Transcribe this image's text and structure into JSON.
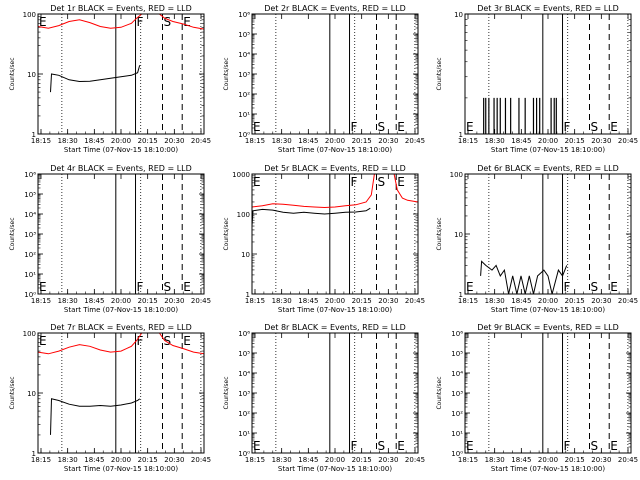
{
  "figure": {
    "background": "#ffffff",
    "axis_color": "#000000",
    "events_color": "#000000",
    "lld_color": "#ff0000"
  },
  "chart_data": [
    {
      "type": "line",
      "title": "Det 1r BLACK = Events, RED = LLD",
      "xlabel": "Start Time (07-Nov-15 18:10:00)",
      "ylabel": "Counts/sec",
      "xlim": [
        "18:10",
        "20:50"
      ],
      "xticks": [
        "18:15",
        "18:30",
        "18:45",
        "20:00",
        "20:15",
        "20:30",
        "20:45"
      ],
      "ylog": true,
      "ylim": [
        1,
        100
      ],
      "yticks": [
        "1",
        "10",
        "100"
      ],
      "markers": [
        {
          "label": "E",
          "time": "18:10",
          "style": "none"
        },
        {
          "label": "F",
          "time": "19:44",
          "style": "solid"
        },
        {
          "label": "S",
          "time": "20:10",
          "style": "dashed"
        },
        {
          "label": "E",
          "time": "20:29",
          "style": "dashed"
        }
      ],
      "dotted_lines": [
        "18:33",
        "19:49",
        "20:47"
      ],
      "extra_solid_lines": [
        "19:25"
      ],
      "series": [
        {
          "name": "LLD",
          "color": "#ff0000",
          "points": [
            [
              "18:10",
              62
            ],
            [
              "18:20",
              58
            ],
            [
              "18:30",
              64
            ],
            [
              "18:40",
              75
            ],
            [
              "18:50",
              80
            ],
            [
              "19:00",
              72
            ],
            [
              "19:10",
              62
            ],
            [
              "19:20",
              58
            ],
            [
              "19:30",
              60
            ],
            [
              "19:40",
              70
            ],
            [
              "19:45",
              85
            ],
            [
              "19:50",
              100
            ]
          ],
          "points2": [
            [
              "20:07",
              100
            ],
            [
              "20:12",
              85
            ],
            [
              "20:20",
              75
            ],
            [
              "20:30",
              68
            ],
            [
              "20:40",
              60
            ],
            [
              "20:50",
              56
            ]
          ]
        },
        {
          "name": "Events",
          "color": "#000000",
          "points": [
            [
              "18:22",
              5
            ],
            [
              "18:23",
              10
            ],
            [
              "18:30",
              9.5
            ],
            [
              "18:40",
              8
            ],
            [
              "18:50",
              7.5
            ],
            [
              "19:00",
              7.6
            ],
            [
              "19:10",
              8
            ],
            [
              "19:20",
              8.5
            ],
            [
              "19:30",
              9
            ],
            [
              "19:40",
              9.5
            ],
            [
              "19:46",
              10.5
            ],
            [
              "19:48",
              14
            ]
          ]
        }
      ]
    },
    {
      "type": "line",
      "title": "Det 2r BLACK = Events, RED = LLD",
      "xlabel": "Start Time (07-Nov-15 18:10:00)",
      "ylabel": "Counts/sec",
      "xlim": [
        "18:10",
        "20:50"
      ],
      "xticks": [
        "18:15",
        "18:30",
        "18:45",
        "20:00",
        "20:15",
        "20:30",
        "20:45"
      ],
      "ylog": true,
      "ylim": [
        1,
        1000000
      ],
      "yticks": [
        "10^0",
        "10^1",
        "10^2",
        "10^3",
        "10^4",
        "10^5",
        "10^6"
      ],
      "markers": [
        {
          "label": "E",
          "time": "18:10",
          "style": "none"
        },
        {
          "label": "F",
          "time": "19:44",
          "style": "solid"
        },
        {
          "label": "S",
          "time": "20:10",
          "style": "dashed"
        },
        {
          "label": "E",
          "time": "20:29",
          "style": "dashed"
        }
      ],
      "dotted_lines": [
        "18:33",
        "19:49",
        "20:47"
      ],
      "extra_solid_lines": [
        "19:25"
      ],
      "series": []
    },
    {
      "type": "line",
      "title": "Det 3r BLACK = Events, RED = LLD",
      "xlabel": "Start Time (07-Nov-15 18:10:00)",
      "ylabel": "Counts/sec",
      "xlim": [
        "18:10",
        "20:50"
      ],
      "xticks": [
        "18:15",
        "18:30",
        "18:45",
        "20:00",
        "20:15",
        "20:30",
        "20:45"
      ],
      "ylog": true,
      "ylim": [
        1,
        10
      ],
      "yticks": [
        "1",
        "10"
      ],
      "markers": [
        {
          "label": "E",
          "time": "18:10",
          "style": "none"
        },
        {
          "label": "F",
          "time": "19:44",
          "style": "solid"
        },
        {
          "label": "S",
          "time": "20:10",
          "style": "dashed"
        },
        {
          "label": "E",
          "time": "20:29",
          "style": "dashed"
        }
      ],
      "dotted_lines": [
        "18:33",
        "19:49",
        "20:47"
      ],
      "extra_solid_lines": [
        "19:25"
      ],
      "series": [
        {
          "name": "Events",
          "color": "#000000",
          "spikes": [
            "18:28",
            "18:30",
            "18:33",
            "18:38",
            "18:41",
            "18:44",
            "18:49",
            "18:54",
            "19:02",
            "19:08",
            "19:16",
            "19:19",
            "19:22",
            "19:33",
            "19:36",
            "19:38",
            "19:44"
          ],
          "spike_level": 2
        }
      ]
    },
    {
      "type": "line",
      "title": "Det 4r BLACK = Events, RED = LLD",
      "xlabel": "Start Time (07-Nov-15 18:10:00)",
      "ylabel": "Counts/sec",
      "xlim": [
        "18:10",
        "20:50"
      ],
      "xticks": [
        "18:15",
        "18:30",
        "18:45",
        "20:00",
        "20:15",
        "20:30",
        "20:45"
      ],
      "ylog": true,
      "ylim": [
        1,
        1000000
      ],
      "yticks": [
        "10^0",
        "10^1",
        "10^2",
        "10^3",
        "10^4",
        "10^5",
        "10^6"
      ],
      "markers": [
        {
          "label": "E",
          "time": "18:10",
          "style": "none"
        },
        {
          "label": "F",
          "time": "19:44",
          "style": "solid"
        },
        {
          "label": "S",
          "time": "20:10",
          "style": "dashed"
        },
        {
          "label": "E",
          "time": "20:29",
          "style": "dashed"
        }
      ],
      "dotted_lines": [
        "18:33",
        "19:49",
        "20:47"
      ],
      "extra_solid_lines": [
        "19:25"
      ],
      "series": []
    },
    {
      "type": "line",
      "title": "Det 5r BLACK = Events, RED = LLD",
      "xlabel": "Start Time (07-Nov-15 18:10:00)",
      "ylabel": "Counts/sec",
      "xlim": [
        "18:10",
        "20:50"
      ],
      "xticks": [
        "18:15",
        "18:30",
        "18:45",
        "20:00",
        "20:15",
        "20:30",
        "20:45"
      ],
      "ylog": true,
      "ylim": [
        1,
        1000
      ],
      "yticks": [
        "1",
        "10",
        "100",
        "1000"
      ],
      "markers": [
        {
          "label": "E",
          "time": "18:10",
          "style": "none"
        },
        {
          "label": "F",
          "time": "19:44",
          "style": "solid"
        },
        {
          "label": "S",
          "time": "20:10",
          "style": "dashed"
        },
        {
          "label": "E",
          "time": "20:29",
          "style": "dashed"
        }
      ],
      "dotted_lines": [
        "18:33",
        "19:49",
        "20:47"
      ],
      "extra_solid_lines": [
        "19:25"
      ],
      "series": [
        {
          "name": "LLD",
          "color": "#ff0000",
          "points": [
            [
              "18:10",
              150
            ],
            [
              "18:20",
              160
            ],
            [
              "18:30",
              180
            ],
            [
              "18:40",
              175
            ],
            [
              "18:50",
              165
            ],
            [
              "19:00",
              155
            ],
            [
              "19:10",
              150
            ],
            [
              "19:20",
              145
            ],
            [
              "19:30",
              150
            ],
            [
              "19:40",
              160
            ],
            [
              "19:50",
              170
            ],
            [
              "20:00",
              200
            ],
            [
              "20:05",
              300
            ],
            [
              "20:08",
              1000
            ]
          ],
          "points2": [
            [
              "20:27",
              1000
            ],
            [
              "20:30",
              400
            ],
            [
              "20:35",
              250
            ],
            [
              "20:40",
              220
            ],
            [
              "20:50",
              200
            ]
          ]
        },
        {
          "name": "Events",
          "color": "#000000",
          "points": [
            [
              "18:10",
              50
            ],
            [
              "18:11",
              120
            ],
            [
              "18:20",
              130
            ],
            [
              "18:30",
              125
            ],
            [
              "18:40",
              110
            ],
            [
              "18:50",
              105
            ],
            [
              "19:00",
              110
            ],
            [
              "19:10",
              105
            ],
            [
              "19:20",
              100
            ],
            [
              "19:30",
              105
            ],
            [
              "19:40",
              110
            ],
            [
              "19:50",
              112
            ],
            [
              "20:00",
              120
            ],
            [
              "20:04",
              140
            ]
          ]
        }
      ]
    },
    {
      "type": "line",
      "title": "Det 6r BLACK = Events, RED = LLD",
      "xlabel": "Start Time (07-Nov-15 18:10:00)",
      "ylabel": "Counts/sec",
      "xlim": [
        "18:10",
        "20:50"
      ],
      "xticks": [
        "18:15",
        "18:30",
        "18:45",
        "20:00",
        "20:15",
        "20:30",
        "20:45"
      ],
      "ylog": true,
      "ylim": [
        1,
        100
      ],
      "yticks": [
        "1",
        "10",
        "100"
      ],
      "markers": [
        {
          "label": "E",
          "time": "18:10",
          "style": "none"
        },
        {
          "label": "F",
          "time": "19:44",
          "style": "solid"
        },
        {
          "label": "S",
          "time": "20:10",
          "style": "dashed"
        },
        {
          "label": "E",
          "time": "20:29",
          "style": "dashed"
        }
      ],
      "dotted_lines": [
        "18:33",
        "19:49",
        "20:47"
      ],
      "extra_solid_lines": [
        "19:25"
      ],
      "series": [
        {
          "name": "Events",
          "color": "#000000",
          "points": [
            [
              "18:25",
              2
            ],
            [
              "18:26",
              3.5
            ],
            [
              "18:30",
              3
            ],
            [
              "18:36",
              2.5
            ],
            [
              "18:40",
              3
            ],
            [
              "18:44",
              2
            ],
            [
              "18:48",
              2.5
            ],
            [
              "18:52",
              1
            ],
            [
              "18:56",
              2
            ],
            [
              "19:00",
              1
            ],
            [
              "19:04",
              2
            ],
            [
              "19:08",
              1
            ],
            [
              "19:12",
              2
            ],
            [
              "19:16",
              1
            ],
            [
              "19:20",
              2
            ],
            [
              "19:26",
              2.5
            ],
            [
              "19:30",
              2
            ],
            [
              "19:34",
              1
            ],
            [
              "19:40",
              2.5
            ],
            [
              "19:44",
              2
            ],
            [
              "19:48",
              3
            ]
          ]
        }
      ]
    },
    {
      "type": "line",
      "title": "Det 7r BLACK = Events, RED = LLD",
      "xlabel": "Start Time (07-Nov-15 18:10:00)",
      "ylabel": "Counts/sec",
      "xlim": [
        "18:10",
        "20:50"
      ],
      "xticks": [
        "18:15",
        "18:30",
        "18:45",
        "20:00",
        "20:15",
        "20:30",
        "20:45"
      ],
      "ylog": true,
      "ylim": [
        1,
        100
      ],
      "yticks": [
        "1",
        "10",
        "100"
      ],
      "markers": [
        {
          "label": "E",
          "time": "18:10",
          "style": "none"
        },
        {
          "label": "F",
          "time": "19:44",
          "style": "solid"
        },
        {
          "label": "S",
          "time": "20:10",
          "style": "dashed"
        },
        {
          "label": "E",
          "time": "20:29",
          "style": "dashed"
        }
      ],
      "dotted_lines": [
        "18:33",
        "19:49",
        "20:47"
      ],
      "extra_solid_lines": [
        "19:25"
      ],
      "series": [
        {
          "name": "LLD",
          "color": "#ff0000",
          "points": [
            [
              "18:10",
              48
            ],
            [
              "18:20",
              45
            ],
            [
              "18:30",
              50
            ],
            [
              "18:40",
              58
            ],
            [
              "18:50",
              64
            ],
            [
              "19:00",
              60
            ],
            [
              "19:10",
              52
            ],
            [
              "19:20",
              48
            ],
            [
              "19:30",
              50
            ],
            [
              "19:40",
              60
            ],
            [
              "19:45",
              75
            ],
            [
              "19:50",
              100
            ]
          ],
          "points2": [
            [
              "20:07",
              100
            ],
            [
              "20:12",
              75
            ],
            [
              "20:20",
              62
            ],
            [
              "20:30",
              55
            ],
            [
              "20:40",
              48
            ],
            [
              "20:50",
              45
            ]
          ]
        },
        {
          "name": "Events",
          "color": "#000000",
          "points": [
            [
              "18:22",
              2
            ],
            [
              "18:23",
              8
            ],
            [
              "18:30",
              7.5
            ],
            [
              "18:40",
              6.5
            ],
            [
              "18:50",
              6
            ],
            [
              "19:00",
              6
            ],
            [
              "19:10",
              6.2
            ],
            [
              "19:20",
              6
            ],
            [
              "19:30",
              6.3
            ],
            [
              "19:40",
              6.8
            ],
            [
              "19:46",
              7.5
            ],
            [
              "19:48",
              8
            ]
          ]
        }
      ]
    },
    {
      "type": "line",
      "title": "Det 8r BLACK = Events, RED = LLD",
      "xlabel": "Start Time (07-Nov-15 18:10:00)",
      "ylabel": "Counts/sec",
      "xlim": [
        "18:10",
        "20:50"
      ],
      "xticks": [
        "18:15",
        "18:30",
        "18:45",
        "20:00",
        "20:15",
        "20:30",
        "20:45"
      ],
      "ylog": true,
      "ylim": [
        1,
        1000000
      ],
      "yticks": [
        "10^0",
        "10^1",
        "10^2",
        "10^3",
        "10^4",
        "10^5",
        "10^6"
      ],
      "markers": [
        {
          "label": "E",
          "time": "18:10",
          "style": "none"
        },
        {
          "label": "F",
          "time": "19:44",
          "style": "solid"
        },
        {
          "label": "S",
          "time": "20:10",
          "style": "dashed"
        },
        {
          "label": "E",
          "time": "20:29",
          "style": "dashed"
        }
      ],
      "dotted_lines": [
        "18:33",
        "19:49",
        "20:47"
      ],
      "extra_solid_lines": [
        "19:25"
      ],
      "series": []
    },
    {
      "type": "line",
      "title": "Det 9r BLACK = Events, RED = LLD",
      "xlabel": "Start Time (07-Nov-15 18:10:00)",
      "ylabel": "Counts/sec",
      "xlim": [
        "18:10",
        "20:50"
      ],
      "xticks": [
        "18:15",
        "18:30",
        "18:45",
        "20:00",
        "20:15",
        "20:30",
        "20:45"
      ],
      "ylog": true,
      "ylim": [
        1,
        1000000
      ],
      "yticks": [
        "10^0",
        "10^1",
        "10^2",
        "10^3",
        "10^4",
        "10^5",
        "10^6"
      ],
      "markers": [
        {
          "label": "E",
          "time": "18:10",
          "style": "none"
        },
        {
          "label": "F",
          "time": "19:44",
          "style": "solid"
        },
        {
          "label": "S",
          "time": "20:10",
          "style": "dashed"
        },
        {
          "label": "E",
          "time": "20:29",
          "style": "dashed"
        }
      ],
      "dotted_lines": [
        "18:33",
        "19:49",
        "20:47"
      ],
      "extra_solid_lines": [
        "19:25"
      ],
      "series": []
    }
  ]
}
